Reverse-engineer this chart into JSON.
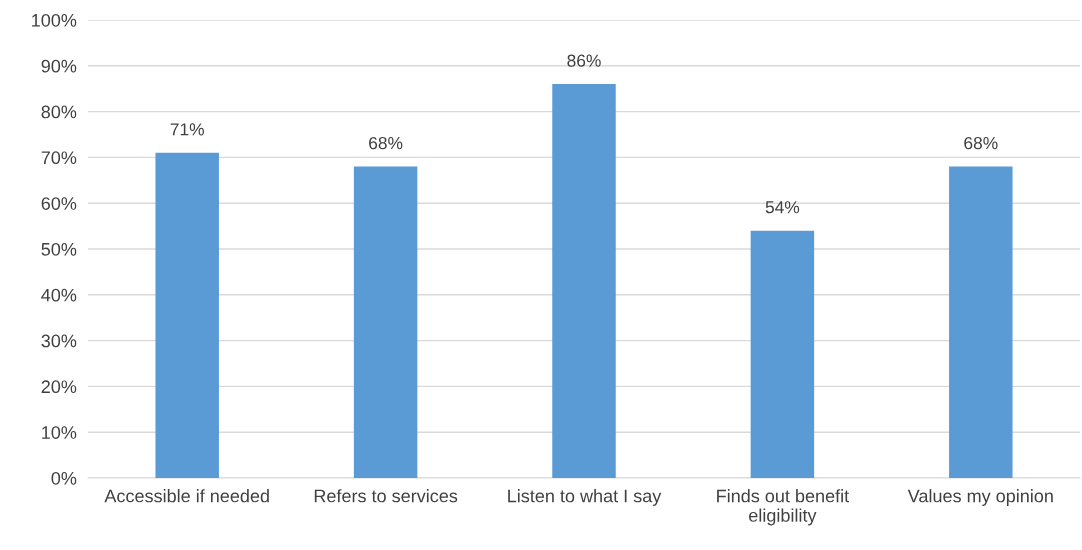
{
  "chart_data": {
    "type": "bar",
    "categories": [
      "Accessible if needed",
      "Refers to services",
      "Listen to what I say",
      "Finds out benefit\neligibility",
      "Values my opinion"
    ],
    "values": [
      71,
      68,
      86,
      54,
      68
    ],
    "value_labels": [
      "71%",
      "68%",
      "86%",
      "54%",
      "68%"
    ],
    "color": "#5b9bd5",
    "ylim": [
      0,
      100
    ],
    "yticks": [
      {
        "value": 0,
        "label": "0%"
      },
      {
        "value": 10,
        "label": "10%"
      },
      {
        "value": 20,
        "label": "20%"
      },
      {
        "value": 30,
        "label": "30%"
      },
      {
        "value": 40,
        "label": "40%"
      },
      {
        "value": 50,
        "label": "50%"
      },
      {
        "value": 60,
        "label": "60%"
      },
      {
        "value": 70,
        "label": "70%"
      },
      {
        "value": 80,
        "label": "80%"
      },
      {
        "value": 90,
        "label": "90%"
      },
      {
        "value": 100,
        "label": "100%"
      }
    ],
    "grid": "y"
  }
}
